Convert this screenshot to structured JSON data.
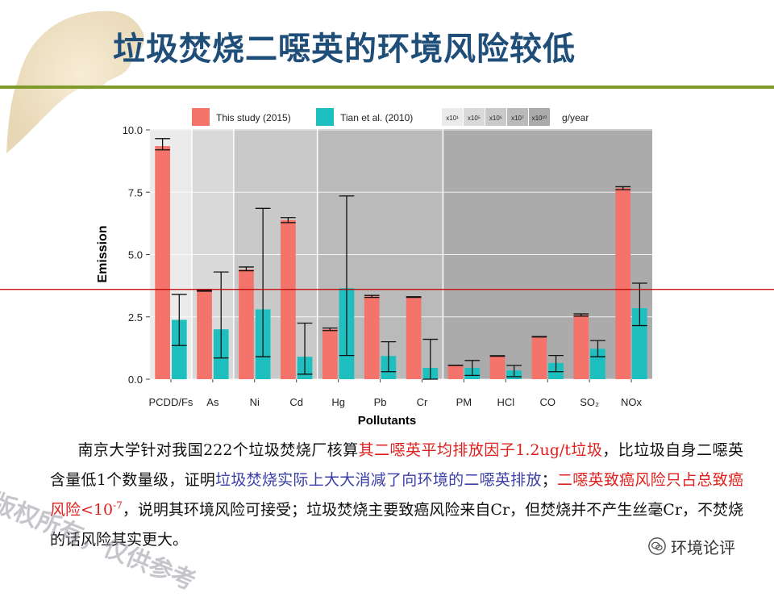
{
  "slide": {
    "title": "垃圾焚烧二噁英的环境风险较低"
  },
  "chart_data": {
    "type": "bar",
    "xlabel": "Pollutants",
    "ylabel": "Emission",
    "ylim": [
      0,
      10.5
    ],
    "y_ticks": [
      "0.0",
      "2.5",
      "5.0",
      "7.5",
      "10.0"
    ],
    "categories": [
      "PCDD/Fs",
      "As",
      "Ni",
      "Cd",
      "Hg",
      "Pb",
      "Cr",
      "PM",
      "HCl",
      "CO",
      "SO₂",
      "NOx"
    ],
    "series": [
      {
        "name": "This study (2015)",
        "color": "#f4736b",
        "values": [
          9.35,
          3.55,
          4.4,
          6.38,
          2.0,
          3.32,
          3.3,
          0.55,
          0.93,
          1.7,
          2.57,
          7.67
        ],
        "err_low": [
          9.2,
          3.53,
          4.35,
          6.28,
          1.95,
          3.28,
          3.28,
          0.55,
          0.92,
          1.69,
          2.53,
          7.6
        ],
        "err_high": [
          9.65,
          3.57,
          4.5,
          6.48,
          2.05,
          3.36,
          3.31,
          0.56,
          0.94,
          1.71,
          2.62,
          7.72
        ]
      },
      {
        "name": "Tian et al. (2010)",
        "color": "#1ebfbf",
        "values": [
          2.38,
          2.0,
          2.8,
          0.9,
          3.65,
          0.93,
          0.45,
          0.45,
          0.35,
          0.65,
          1.22,
          2.85
        ],
        "err_low": [
          1.35,
          0.85,
          0.9,
          0.2,
          0.95,
          0.3,
          0.0,
          0.15,
          0.1,
          0.3,
          0.9,
          2.15
        ],
        "err_high": [
          3.4,
          4.3,
          6.85,
          2.25,
          7.35,
          1.5,
          1.6,
          0.75,
          0.55,
          0.95,
          1.55,
          3.85
        ]
      }
    ],
    "scale_groups": {
      "labels": [
        "x10¹",
        "x10⁵",
        "x10⁶",
        "x10⁷",
        "x10¹⁰"
      ],
      "fills": [
        "#ebebeb",
        "#d9d9d9",
        "#c9c9c9",
        "#bababa",
        "#ababab"
      ],
      "category_spans": [
        [
          0,
          0
        ],
        [
          1,
          1
        ],
        [
          2,
          3
        ],
        [
          4,
          6
        ],
        [
          7,
          11
        ]
      ],
      "unit": "g/year"
    },
    "reference_line": {
      "value": 3.6,
      "color": "#c00000"
    }
  },
  "body_paragraph": {
    "part1": "南京大学针对我国222个垃圾焚烧厂核算",
    "part2": "其二噁英平均排放因子1.2ug/t垃圾",
    "part3": "，比垃圾自身二噁英含量低1个数量级，证明",
    "part4": "垃圾焚烧实际上大大消减了向环境的二噁英排放",
    "part5": "；",
    "part6": "二噁英致癌风险只占总致癌风险<10",
    "part6_sup": "-7",
    "part7": "，说明其环境风险可接受；垃圾焚烧主要致癌风险来自Cr，但焚烧并不产生丝毫Cr，不焚烧的话风险其实更大。"
  },
  "watermark": {
    "text": "版权所有，仅供参考"
  },
  "logo": {
    "text": "环境论评",
    "icon": "wechat-icon"
  }
}
